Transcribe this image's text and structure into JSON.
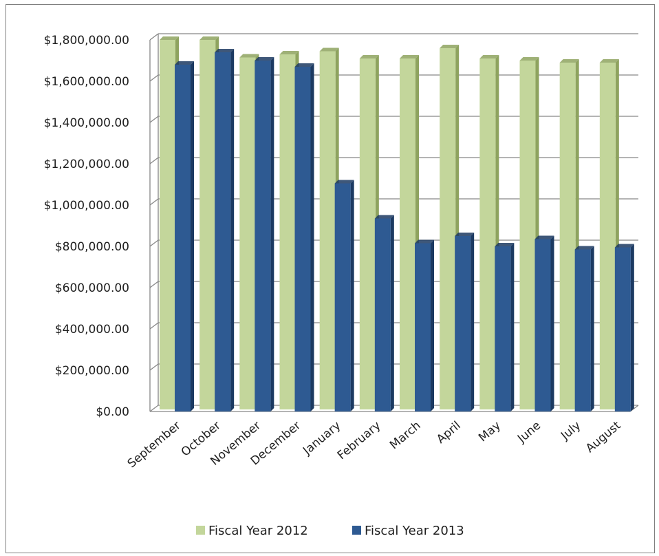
{
  "chart_data": {
    "type": "bar",
    "title": "",
    "xlabel": "",
    "ylabel": "",
    "ylim": [
      0,
      1800000
    ],
    "ytick_step": 200000,
    "ytick_labels": [
      "$0.00",
      "$200,000.00",
      "$400,000.00",
      "$600,000.00",
      "$800,000.00",
      "$1,000,000.00",
      "$1,200,000.00",
      "$1,400,000.00",
      "$1,600,000.00",
      "$1,800,000.00"
    ],
    "grid": true,
    "three_d": true,
    "legend_position": "bottom",
    "categories": [
      "September",
      "October",
      "November",
      "December",
      "January",
      "February",
      "March",
      "April",
      "May",
      "June",
      "July",
      "August"
    ],
    "series": [
      {
        "name": "Fiscal Year 2012",
        "color": "#c3d69b",
        "side_color": "#8ea35f",
        "values": [
          1800000,
          1800000,
          1715000,
          1730000,
          1745000,
          1710000,
          1710000,
          1760000,
          1710000,
          1700000,
          1690000,
          1690000
        ]
      },
      {
        "name": "Fiscal Year 2013",
        "color": "#2e5a92",
        "side_color": "#1c3a62",
        "values": [
          1680000,
          1740000,
          1700000,
          1670000,
          1105000,
          935000,
          815000,
          850000,
          800000,
          835000,
          785000,
          795000
        ]
      }
    ]
  }
}
